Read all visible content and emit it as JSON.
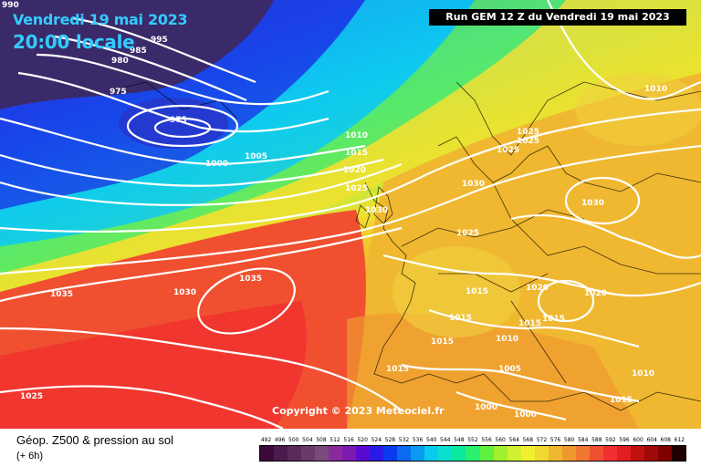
{
  "header": {
    "date": "Vendredi 19 mai 2023",
    "time": "20:00 locale",
    "run": "Run GEM 12 Z du Vendredi 19 mai 2023"
  },
  "copyright": "Copyright © 2023 Meteociel.fr",
  "legend": {
    "title": "Géop. Z500 & pression au sol",
    "subtitle": "(+ 6h)",
    "scale_values": [
      "492",
      "496",
      "500",
      "504",
      "508",
      "512",
      "516",
      "520",
      "524",
      "528",
      "532",
      "536",
      "540",
      "544",
      "548",
      "552",
      "556",
      "560",
      "564",
      "568",
      "572",
      "576",
      "580",
      "584",
      "588",
      "592",
      "596",
      "600",
      "604",
      "608",
      "612"
    ],
    "scale_colors": [
      "#3a0a3a",
      "#4d1a4d",
      "#5a2a5a",
      "#6a3a6a",
      "#7a4a7a",
      "#8a2a9a",
      "#7a1ab0",
      "#5a0ad0",
      "#2a1ae8",
      "#0a3af0",
      "#0a6af0",
      "#0a9af0",
      "#0acaf0",
      "#0ae0d0",
      "#0ae8a0",
      "#2af070",
      "#60f040",
      "#a0f030",
      "#d0f030",
      "#f0f030",
      "#f0d830",
      "#f0b830",
      "#f09830",
      "#f07830",
      "#f05030",
      "#f03030",
      "#e02020",
      "#c01010",
      "#a00808",
      "#800000",
      "#200000"
    ]
  },
  "isobars": {
    "pressure_labels": [
      "990",
      "995",
      "985",
      "980",
      "975",
      "1000",
      "1005",
      "1010",
      "1015",
      "1020",
      "1025",
      "1030",
      "1025",
      "1025",
      "1025",
      "1030",
      "1025",
      "1035",
      "1030",
      "1035",
      "1025",
      "1015",
      "1020",
      "1020",
      "1015",
      "1010",
      "1015",
      "1015",
      "1015",
      "1005",
      "1010",
      "1000",
      "1000",
      "1015",
      "1010",
      "1010",
      "1010",
      "1015"
    ]
  }
}
